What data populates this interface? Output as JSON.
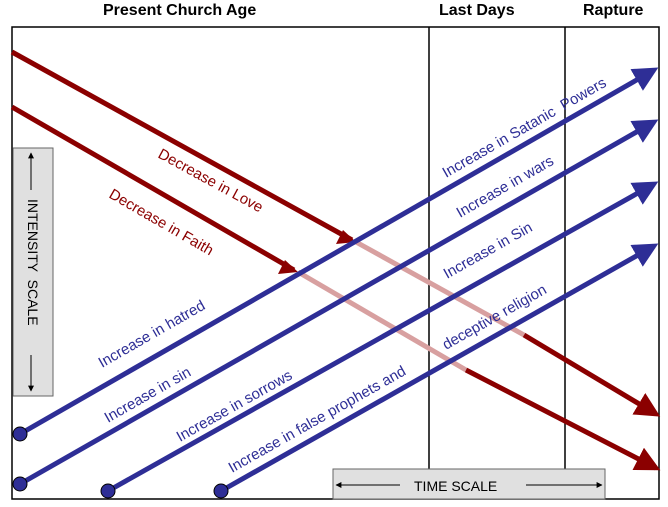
{
  "headers": {
    "present": "Present Church Age",
    "last_days": "Last Days",
    "rapture": "Rapture"
  },
  "scales": {
    "intensity": "INTENSITY  SCALE",
    "time": "TIME SCALE"
  },
  "decreasing": [
    {
      "label": "Decrease in Love"
    },
    {
      "label": "Decrease in Faith"
    }
  ],
  "increasing": [
    {
      "label_start": "Increase in hatred",
      "label_end": "Increase in Satanic  Powers"
    },
    {
      "label_start": "Increase in sin",
      "label_end": "Increase in wars"
    },
    {
      "label_start": "Increase in sorrows",
      "label_end": "Increase in Sin"
    },
    {
      "label_start": "Increase in false prophets and",
      "label_end": "deceptive religion"
    }
  ],
  "colors": {
    "blue_line": "#2e2e96",
    "red_line": "#8b0000",
    "faded_red": "#d8a0a0",
    "scale_box": "#e0e0e0"
  }
}
